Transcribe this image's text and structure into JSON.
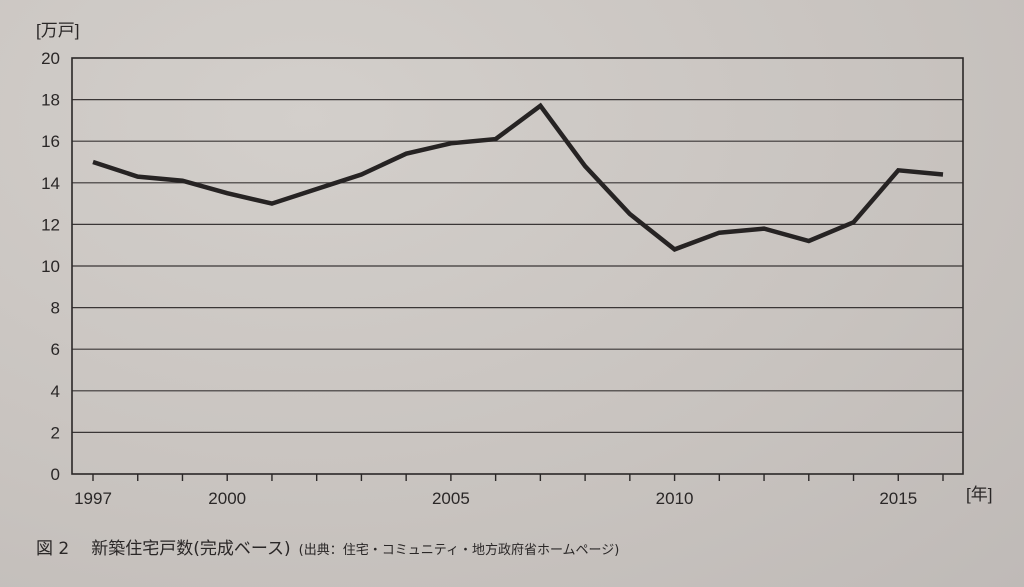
{
  "chart_data": {
    "type": "line",
    "title": "新築住宅戸数(完成ベース)",
    "figure_label": "図2",
    "source": "(出典：住宅・コミュニティ・地方政府省ホームページ)",
    "xlabel": "[年]",
    "ylabel": "[万戸]",
    "x": [
      1997,
      1998,
      1999,
      2000,
      2001,
      2002,
      2003,
      2004,
      2005,
      2006,
      2007,
      2008,
      2009,
      2010,
      2011,
      2012,
      2013,
      2014,
      2015,
      2016
    ],
    "values": [
      15.0,
      14.3,
      14.1,
      13.5,
      13.0,
      13.7,
      14.4,
      15.4,
      15.9,
      16.1,
      17.7,
      14.8,
      12.5,
      10.8,
      11.6,
      11.8,
      11.2,
      12.1,
      14.6,
      14.4
    ],
    "series": [
      {
        "name": "新築住宅戸数",
        "values": [
          15.0,
          14.3,
          14.1,
          13.5,
          13.0,
          13.7,
          14.4,
          15.4,
          15.9,
          16.1,
          17.7,
          14.8,
          12.5,
          10.8,
          11.6,
          11.8,
          11.2,
          12.1,
          14.6,
          14.4
        ]
      }
    ],
    "x_tick_labels": [
      "1997",
      "2000",
      "2005",
      "2010",
      "2015"
    ],
    "y_tick_labels": [
      "0",
      "2",
      "4",
      "6",
      "8",
      "10",
      "12",
      "14",
      "16",
      "18",
      "20"
    ],
    "ylim": [
      0,
      20
    ],
    "xlim": [
      1996.5,
      2016.5
    ],
    "grid": {
      "horizontal": true,
      "vertical": false
    },
    "legend": null,
    "line_color": "#262323"
  },
  "caption": {
    "figure": "図 2",
    "title": "新築住宅戸数(完成ベース)",
    "source": "(出典：住宅・コミュニティ・地方政府省ホームページ)"
  },
  "axes": {
    "y_unit": "[万戸]",
    "x_unit": "[年]"
  }
}
